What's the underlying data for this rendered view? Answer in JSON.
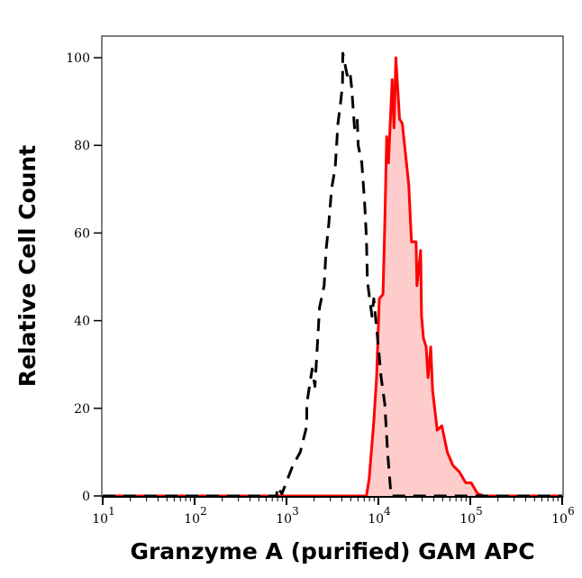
{
  "chart_data": {
    "type": "area",
    "title": "",
    "xlabel": "Granzyme A (purified) GAM APC",
    "ylabel": "Relative Cell Count",
    "x_scale": "log",
    "xlim": [
      10,
      1000000
    ],
    "ylim": [
      0,
      105
    ],
    "grid": false,
    "x_tick_labels": [
      {
        "base": "10",
        "exp": "1",
        "value": 10
      },
      {
        "base": "10",
        "exp": "2",
        "value": 100
      },
      {
        "base": "10",
        "exp": "3",
        "value": 1000
      },
      {
        "base": "10",
        "exp": "4",
        "value": 10000
      },
      {
        "base": "10",
        "exp": "5",
        "value": 100000
      },
      {
        "base": "10",
        "exp": "6",
        "value": 1000000
      }
    ],
    "y_ticks": [
      "0",
      "20",
      "40",
      "60",
      "80",
      "100"
    ],
    "series": [
      {
        "style": "dashed-black-line",
        "color": "#000000",
        "x": [
          10,
          780,
          794,
          891,
          1175,
          1413,
          1660,
          1660,
          1905,
          2042,
          2291,
          2570,
          2692,
          2884,
          3090,
          3388,
          3631,
          3890,
          4074,
          4100,
          4571,
          4898,
          5129,
          5495,
          5888,
          6026,
          6607,
          7079,
          7413,
          7586,
          8511,
          8913,
          10000,
          10715,
          11749,
          12589,
          13490,
          13800,
          1000000
        ],
        "y": [
          0,
          0,
          2,
          0.5,
          7,
          10,
          16,
          21,
          29,
          25,
          43,
          48,
          56,
          62,
          70,
          75,
          85,
          90,
          94,
          101,
          96,
          97,
          93,
          84,
          86,
          80,
          76,
          67,
          59,
          49,
          41,
          45,
          34,
          27,
          21,
          10,
          2,
          0,
          0
        ]
      },
      {
        "style": "red-line-filled",
        "color": "#ff0000",
        "fill": "#ffcccc",
        "x": [
          10,
          7413,
          7943,
          8913,
          9550,
          10233,
          11220,
          11749,
          12303,
          12882,
          14125,
          14791,
          15488,
          16982,
          18197,
          19498,
          21380,
          22909,
          25704,
          26303,
          28840,
          29512,
          30903,
          33113,
          34674,
          37154,
          38905,
          43652,
          48978,
          56234,
          64565,
          75858,
          89125,
          102329,
          120226,
          141254,
          1000000
        ],
        "y": [
          0,
          0,
          4,
          17,
          27,
          45,
          46,
          62,
          82,
          76,
          95,
          84,
          100,
          86,
          85,
          79,
          71,
          58,
          58,
          48,
          56,
          41,
          36,
          34,
          27,
          34,
          24,
          15,
          16,
          10,
          7,
          5.5,
          3,
          3,
          0.5,
          0,
          0
        ]
      }
    ]
  }
}
